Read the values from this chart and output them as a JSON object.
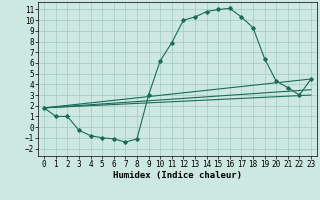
{
  "title": "",
  "xlabel": "Humidex (Indice chaleur)",
  "background_color": "#cce8e0",
  "grid_color": "#aacfc8",
  "line_color": "#1a6b5a",
  "xlim": [
    -0.5,
    23.5
  ],
  "ylim": [
    -2.7,
    11.7
  ],
  "xticks": [
    0,
    1,
    2,
    3,
    4,
    5,
    6,
    7,
    8,
    9,
    10,
    11,
    12,
    13,
    14,
    15,
    16,
    17,
    18,
    19,
    20,
    21,
    22,
    23
  ],
  "yticks": [
    -2,
    -1,
    0,
    1,
    2,
    3,
    4,
    5,
    6,
    7,
    8,
    9,
    10,
    11
  ],
  "line1_x": [
    0,
    1,
    2,
    3,
    4,
    5,
    6,
    7,
    8,
    9,
    10,
    11,
    12,
    13,
    14,
    15,
    16,
    17,
    18,
    19,
    20,
    21,
    22,
    23
  ],
  "line1_y": [
    1.8,
    1.0,
    1.0,
    -0.3,
    -0.8,
    -1.0,
    -1.1,
    -1.4,
    -1.1,
    3.0,
    6.2,
    7.9,
    10.0,
    10.3,
    10.8,
    11.0,
    11.1,
    10.3,
    9.3,
    6.4,
    4.3,
    3.7,
    3.0,
    4.5
  ],
  "line2_x": [
    0,
    23
  ],
  "line2_y": [
    1.8,
    4.5
  ],
  "line3_x": [
    0,
    23
  ],
  "line3_y": [
    1.8,
    3.5
  ],
  "line4_x": [
    0,
    23
  ],
  "line4_y": [
    1.8,
    3.0
  ],
  "tick_fontsize": 5.5,
  "xlabel_fontsize": 6.5,
  "marker_size": 1.8,
  "line_width": 0.8
}
